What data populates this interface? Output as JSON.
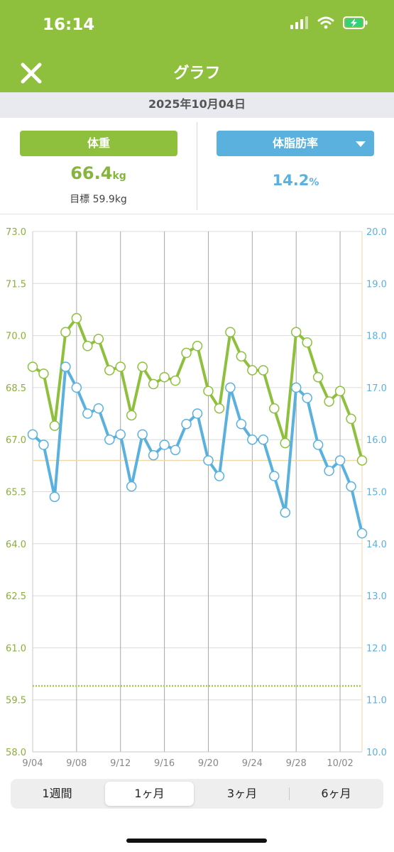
{
  "status": {
    "time": "16:14"
  },
  "header": {
    "title": "グラフ"
  },
  "date": "2025年10月04日",
  "weight_panel": {
    "button_label": "体重",
    "value": "66.4",
    "unit": "kg",
    "goal_label": "目標",
    "goal_value": "59.9kg"
  },
  "fat_panel": {
    "button_label": "体脂肪率",
    "value": "14.2",
    "unit": "%"
  },
  "colors": {
    "brand_green": "#8ec03d",
    "weight_line": "#8ec03d",
    "fat_line": "#5bb1de",
    "axis_left": "#8aaf3a",
    "axis_right": "#5bb1de"
  },
  "icons": {
    "close": "close-icon",
    "dropdown": "chevron-down-icon",
    "signal": "signal-icon",
    "wifi": "wifi-icon",
    "battery": "battery-charging-icon"
  },
  "chart_data": {
    "type": "line",
    "x": [
      "9/04",
      "9/05",
      "9/06",
      "9/07",
      "9/08",
      "9/09",
      "9/10",
      "9/11",
      "9/12",
      "9/13",
      "9/14",
      "9/15",
      "9/16",
      "9/17",
      "9/18",
      "9/19",
      "9/20",
      "9/21",
      "9/22",
      "9/23",
      "9/24",
      "9/25",
      "9/26",
      "9/27",
      "9/28",
      "9/29",
      "9/30",
      "10/01",
      "10/02",
      "10/03",
      "10/04"
    ],
    "x_ticks": [
      "9/04",
      "9/08",
      "9/12",
      "9/16",
      "9/20",
      "9/24",
      "9/28",
      "10/02"
    ],
    "y_left": {
      "ticks": [
        "73.0",
        "71.5",
        "70.0",
        "68.5",
        "67.0",
        "65.5",
        "64.0",
        "62.5",
        "61.0",
        "59.5",
        "58.0"
      ],
      "range": [
        58.0,
        73.0
      ]
    },
    "y_right": {
      "ticks": [
        "20.0",
        "19.0",
        "18.0",
        "17.0",
        "16.0",
        "15.0",
        "14.0",
        "13.0",
        "12.0",
        "11.0",
        "10.0"
      ],
      "range": [
        10.0,
        20.0
      ]
    },
    "series": [
      {
        "axis": "left",
        "values": [
          69.1,
          68.9,
          67.4,
          70.1,
          70.5,
          69.7,
          69.9,
          69.0,
          69.1,
          67.7,
          69.1,
          68.6,
          68.8,
          68.7,
          69.5,
          69.7,
          68.4,
          67.9,
          70.1,
          69.4,
          69.0,
          69.0,
          67.9,
          66.9,
          70.1,
          69.8,
          68.8,
          68.1,
          68.4,
          67.6,
          66.4
        ]
      },
      {
        "axis": "right",
        "values": [
          16.1,
          15.9,
          14.9,
          17.4,
          17.0,
          16.5,
          16.6,
          16.0,
          16.1,
          15.1,
          16.1,
          15.7,
          15.9,
          15.8,
          16.3,
          16.5,
          15.6,
          15.3,
          17.0,
          16.3,
          16.0,
          16.0,
          15.3,
          14.6,
          17.0,
          16.8,
          15.9,
          15.4,
          15.6,
          15.1,
          14.2
        ]
      }
    ],
    "reference_lines": {
      "weight_current": 66.4,
      "weight_goal": 59.9
    },
    "grid": true
  },
  "periods": [
    {
      "label": "1週間",
      "active": false
    },
    {
      "label": "1ヶ月",
      "active": true
    },
    {
      "label": "3ヶ月",
      "active": false
    },
    {
      "label": "6ヶ月",
      "active": false
    }
  ]
}
